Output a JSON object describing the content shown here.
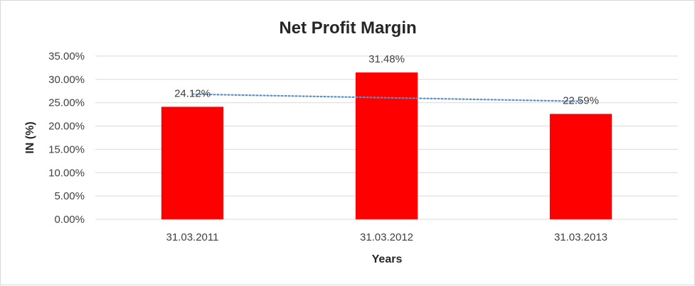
{
  "chart_data": {
    "type": "bar",
    "title": "Net Profit Margin",
    "xlabel": "Years",
    "ylabel": "IN (%)",
    "categories": [
      "31.03.2011",
      "31.03.2012",
      "31.03.2013"
    ],
    "values": [
      24.12,
      31.48,
      22.59
    ],
    "data_labels": [
      "24.12%",
      "31.48%",
      "22.59%"
    ],
    "ylim": [
      0,
      35
    ],
    "yticks": [
      0,
      5,
      10,
      15,
      20,
      25,
      30,
      35
    ],
    "ytick_labels": [
      "0.00%",
      "5.00%",
      "10.00%",
      "15.00%",
      "20.00%",
      "25.00%",
      "30.00%",
      "35.00%"
    ],
    "trendline": {
      "type": "linear",
      "style": "dotted",
      "color": "#5b8fc9"
    },
    "bar_color": "#ff0000",
    "grid": true,
    "legend": "none"
  }
}
